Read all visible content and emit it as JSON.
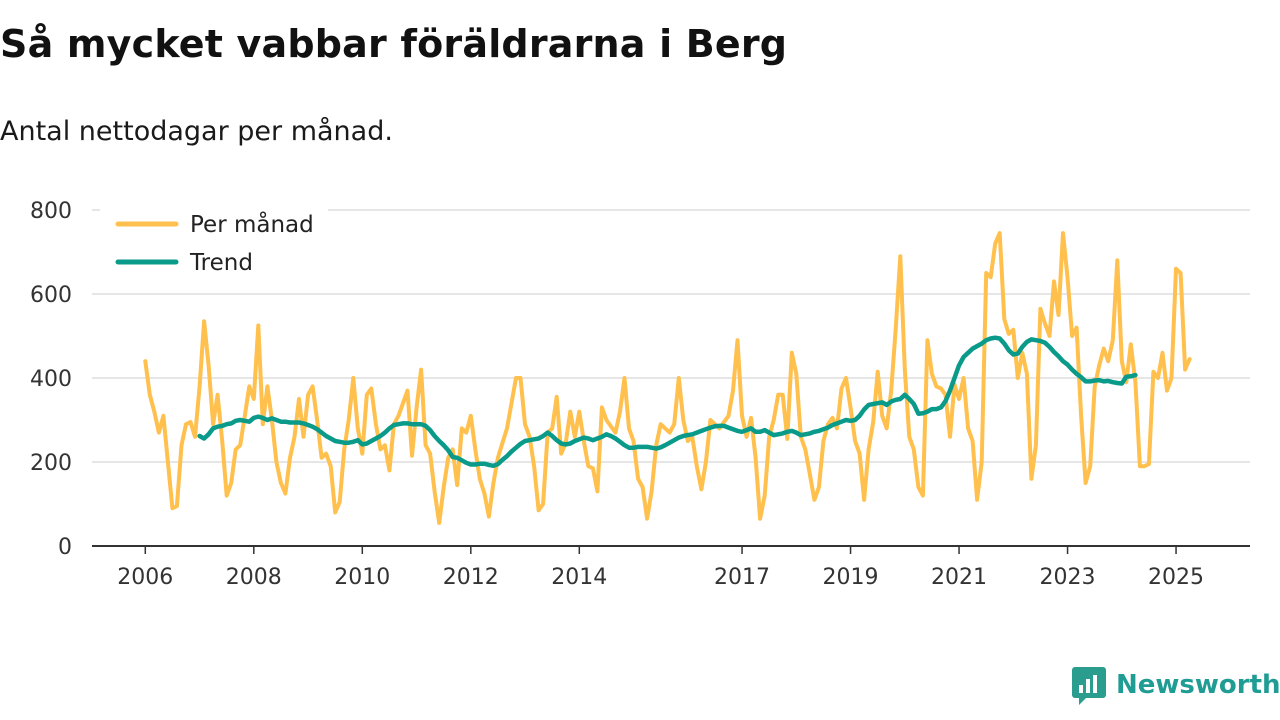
{
  "title": "Så mycket vabbar föräldrarna i Berg",
  "subtitle": "Antal nettodagar per månad.",
  "brand": {
    "name": "Newsworthy",
    "color": "#2a9d8f",
    "icon": "newsworthy-logo-icon"
  },
  "colors": {
    "per_month": "#ffc04d",
    "trend": "#0a9a8a",
    "grid": "#dddddd",
    "axis": "#333333"
  },
  "chart_data": {
    "type": "line",
    "title": "Så mycket vabbar föräldrarna i Berg",
    "subtitle": "Antal nettodagar per månad.",
    "xlabel": "",
    "ylabel": "",
    "ylim": [
      0,
      800
    ],
    "yticks": [
      0,
      200,
      400,
      600,
      800
    ],
    "xlim": [
      2005.0,
      2026.3
    ],
    "xticks": [
      2006,
      2008,
      2010,
      2012,
      2014,
      2017,
      2019,
      2021,
      2023,
      2025
    ],
    "grid": true,
    "legend": {
      "position": "top-left"
    },
    "series": [
      {
        "name": "Per månad",
        "start": 2006.0,
        "step_months": 1,
        "values": [
          440,
          360,
          320,
          270,
          310,
          200,
          90,
          95,
          240,
          290,
          295,
          260,
          380,
          535,
          430,
          290,
          360,
          250,
          120,
          150,
          230,
          240,
          310,
          380,
          350,
          525,
          290,
          380,
          300,
          200,
          150,
          125,
          210,
          260,
          350,
          260,
          360,
          380,
          300,
          210,
          220,
          190,
          80,
          105,
          230,
          300,
          400,
          280,
          220,
          360,
          375,
          290,
          230,
          240,
          180,
          290,
          310,
          340,
          370,
          215,
          330,
          420,
          240,
          220,
          130,
          55,
          140,
          210,
          230,
          145,
          280,
          270,
          310,
          230,
          160,
          125,
          70,
          150,
          210,
          245,
          280,
          340,
          400,
          400,
          290,
          260,
          190,
          85,
          100,
          270,
          280,
          355,
          220,
          245,
          320,
          260,
          320,
          250,
          190,
          185,
          130,
          330,
          300,
          285,
          270,
          320,
          400,
          280,
          250,
          160,
          140,
          65,
          130,
          240,
          290,
          280,
          270,
          290,
          400,
          300,
          250,
          260,
          190,
          135,
          200,
          300,
          290,
          280,
          295,
          310,
          370,
          490,
          310,
          260,
          305,
          210,
          65,
          120,
          260,
          300,
          360,
          360,
          255,
          460,
          410,
          260,
          230,
          170,
          110,
          140,
          250,
          290,
          305,
          280,
          375,
          400,
          330,
          250,
          220,
          110,
          230,
          295,
          415,
          310,
          280,
          370,
          520,
          690,
          420,
          260,
          230,
          140,
          120,
          490,
          410,
          380,
          375,
          360,
          260,
          385,
          350,
          400,
          280,
          250,
          110,
          200,
          650,
          640,
          720,
          745,
          540,
          505,
          515,
          400,
          460,
          410,
          160,
          240,
          565,
          530,
          500,
          630,
          550,
          745,
          640,
          500,
          520,
          310,
          150,
          190,
          380,
          430,
          470,
          440,
          490,
          680,
          440,
          390,
          480,
          390,
          190,
          190,
          195,
          415,
          400,
          460,
          370,
          400,
          660,
          650,
          420,
          445
        ]
      },
      {
        "name": "Trend",
        "start": 2007.0,
        "step_months": 1,
        "values": [
          262,
          256,
          266,
          280,
          284,
          286,
          290,
          292,
          298,
          300,
          298,
          296,
          305,
          308,
          305,
          300,
          304,
          300,
          296,
          296,
          294,
          294,
          294,
          292,
          288,
          284,
          278,
          270,
          262,
          256,
          250,
          248,
          246,
          246,
          248,
          252,
          242,
          244,
          250,
          256,
          262,
          270,
          280,
          288,
          290,
          292,
          292,
          290,
          290,
          290,
          286,
          276,
          262,
          250,
          240,
          228,
          212,
          210,
          204,
          198,
          194,
          194,
          196,
          196,
          193,
          191,
          195,
          205,
          214,
          225,
          234,
          243,
          250,
          252,
          254,
          256,
          262,
          270,
          262,
          252,
          244,
          242,
          244,
          250,
          254,
          258,
          256,
          252,
          256,
          260,
          266,
          262,
          256,
          248,
          240,
          234,
          234,
          236,
          236,
          236,
          234,
          232,
          235,
          240,
          246,
          252,
          258,
          262,
          264,
          266,
          270,
          274,
          278,
          282,
          285,
          286,
          286,
          282,
          278,
          274,
          272,
          276,
          280,
          272,
          272,
          276,
          270,
          264,
          266,
          268,
          272,
          274,
          270,
          264,
          266,
          268,
          272,
          274,
          278,
          282,
          288,
          292,
          296,
          300,
          298,
          300,
          310,
          325,
          336,
          338,
          340,
          342,
          336,
          344,
          348,
          350,
          360,
          350,
          338,
          315,
          316,
          320,
          326,
          326,
          330,
          345,
          370,
          400,
          430,
          450,
          460,
          470,
          476,
          482,
          490,
          494,
          496,
          494,
          482,
          466,
          456,
          458,
          474,
          486,
          492,
          490,
          488,
          484,
          474,
          462,
          452,
          440,
          432,
          420,
          410,
          402,
          392,
          392,
          394,
          395,
          392,
          393,
          390,
          388,
          387,
          403,
          404,
          407
        ]
      }
    ]
  }
}
